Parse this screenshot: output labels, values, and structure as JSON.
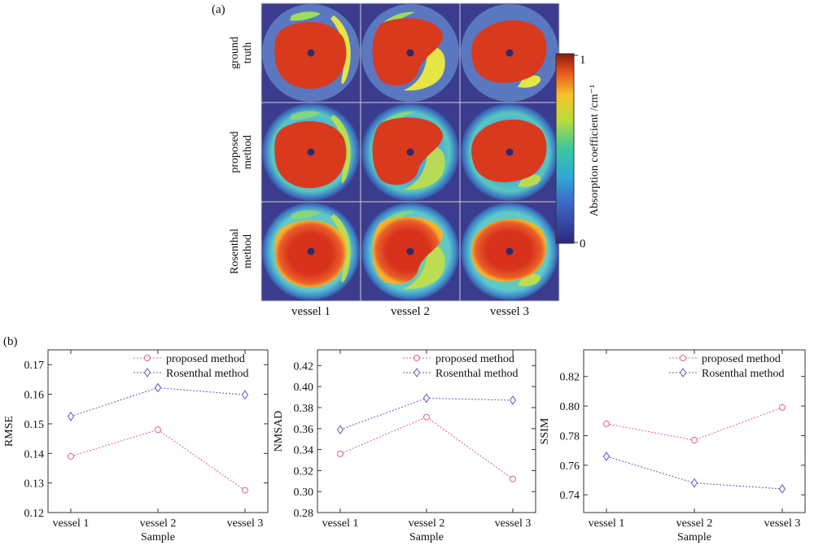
{
  "panel_a": {
    "label": "(a)",
    "row_labels": [
      [
        "ground",
        "truth"
      ],
      [
        "proposed",
        "method"
      ],
      [
        "Rosenthal",
        "method"
      ]
    ],
    "column_labels": [
      "vessel 1",
      "vessel 2",
      "vessel 3"
    ],
    "colorbar": {
      "label": "Absorption coefficient /cm⁻¹",
      "max_label": "1",
      "min_label": "0",
      "range": [
        0,
        1
      ]
    },
    "colors": {
      "background": "#3b3c8e",
      "ring": "#5a78c0",
      "lumen": "#d93a1e",
      "center": "#2b2b6a",
      "plaque": "#e3e645"
    }
  },
  "panel_b": {
    "label": "(b)"
  },
  "chart_data": [
    {
      "type": "line",
      "categories": [
        "vessel 1",
        "vessel 2",
        "vessel 3"
      ],
      "series": [
        {
          "name": "proposed method",
          "values": [
            0.139,
            0.148,
            0.1275
          ],
          "marker": "circle",
          "color": "#e0607e"
        },
        {
          "name": "Rosenthal method",
          "values": [
            0.1525,
            0.1622,
            0.1598
          ],
          "marker": "diamond",
          "color": "#5a5ac8"
        }
      ],
      "ylim": [
        0.12,
        0.175
      ],
      "yticks": [
        "0.12",
        "0.13",
        "0.14",
        "0.15",
        "0.16",
        "0.17"
      ],
      "ylabel": "RMSE",
      "xlabel": "Sample",
      "legend": "top-right"
    },
    {
      "type": "line",
      "categories": [
        "vessel 1",
        "vessel 2",
        "vessel 3"
      ],
      "series": [
        {
          "name": "proposed method",
          "values": [
            0.336,
            0.371,
            0.312
          ],
          "marker": "circle",
          "color": "#e0607e"
        },
        {
          "name": "Rosenthal method",
          "values": [
            0.359,
            0.389,
            0.387
          ],
          "marker": "diamond",
          "color": "#5a5ac8"
        }
      ],
      "ylim": [
        0.28,
        0.435
      ],
      "yticks": [
        "0.28",
        "0.30",
        "0.32",
        "0.34",
        "0.36",
        "0.38",
        "0.40",
        "0.42"
      ],
      "ylabel": "NMSAD",
      "xlabel": "Sample",
      "legend": "top-right"
    },
    {
      "type": "line",
      "categories": [
        "vessel 1",
        "vessel 2",
        "vessel 3"
      ],
      "series": [
        {
          "name": "proposed method",
          "values": [
            0.788,
            0.777,
            0.799
          ],
          "marker": "circle",
          "color": "#e0607e"
        },
        {
          "name": "Rosenthal method",
          "values": [
            0.766,
            0.748,
            0.744
          ],
          "marker": "diamond",
          "color": "#5a5ac8"
        }
      ],
      "ylim": [
        0.728,
        0.838
      ],
      "yticks": [
        "0.74",
        "0.76",
        "0.78",
        "0.80",
        "0.82"
      ],
      "ylabel": "SSIM",
      "xlabel": "Sample",
      "legend": "top-right"
    }
  ]
}
